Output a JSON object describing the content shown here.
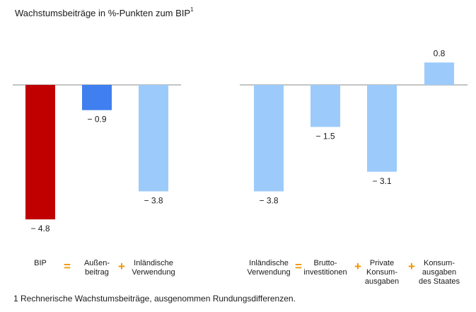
{
  "title": "Wachstumsbeiträge in %-Punkten zum BIP",
  "title_sup": "1",
  "footnote": "1 Rechnerische Wachstumsbeiträge, ausgenommen Rundungsdifferenzen.",
  "operators": {
    "equals": "=",
    "plus": "+"
  },
  "colors": {
    "bip": "#c00000",
    "aussenbeitrag": "#3f7fef",
    "light": "#9ccbfb",
    "axis": "#888888"
  },
  "chart_data": [
    {
      "type": "bar",
      "categories": [
        "BIP",
        "Außen-\nbeitrag",
        "Inländische\nVerwendung"
      ],
      "values": [
        -4.8,
        -0.9,
        -3.8
      ],
      "value_labels": [
        "− 4.8",
        "− 0.9",
        "− 3.8"
      ],
      "operators": [
        "=",
        "+"
      ],
      "colors": [
        "#c00000",
        "#3f7fef",
        "#9ccbfb"
      ]
    },
    {
      "type": "bar",
      "categories": [
        "Inländische\nVerwendung",
        "Brutto-\ninvestitionen",
        "Private\nKonsum-\nausgaben",
        "Konsum-\nausgaben\ndes Staates"
      ],
      "values": [
        -3.8,
        -1.5,
        -3.1,
        0.8
      ],
      "value_labels": [
        "− 3.8",
        "− 1.5",
        "− 3.1",
        "0.8"
      ],
      "operators": [
        "=",
        "+",
        "+"
      ],
      "colors": [
        "#9ccbfb",
        "#9ccbfb",
        "#9ccbfb",
        "#9ccbfb"
      ]
    }
  ]
}
